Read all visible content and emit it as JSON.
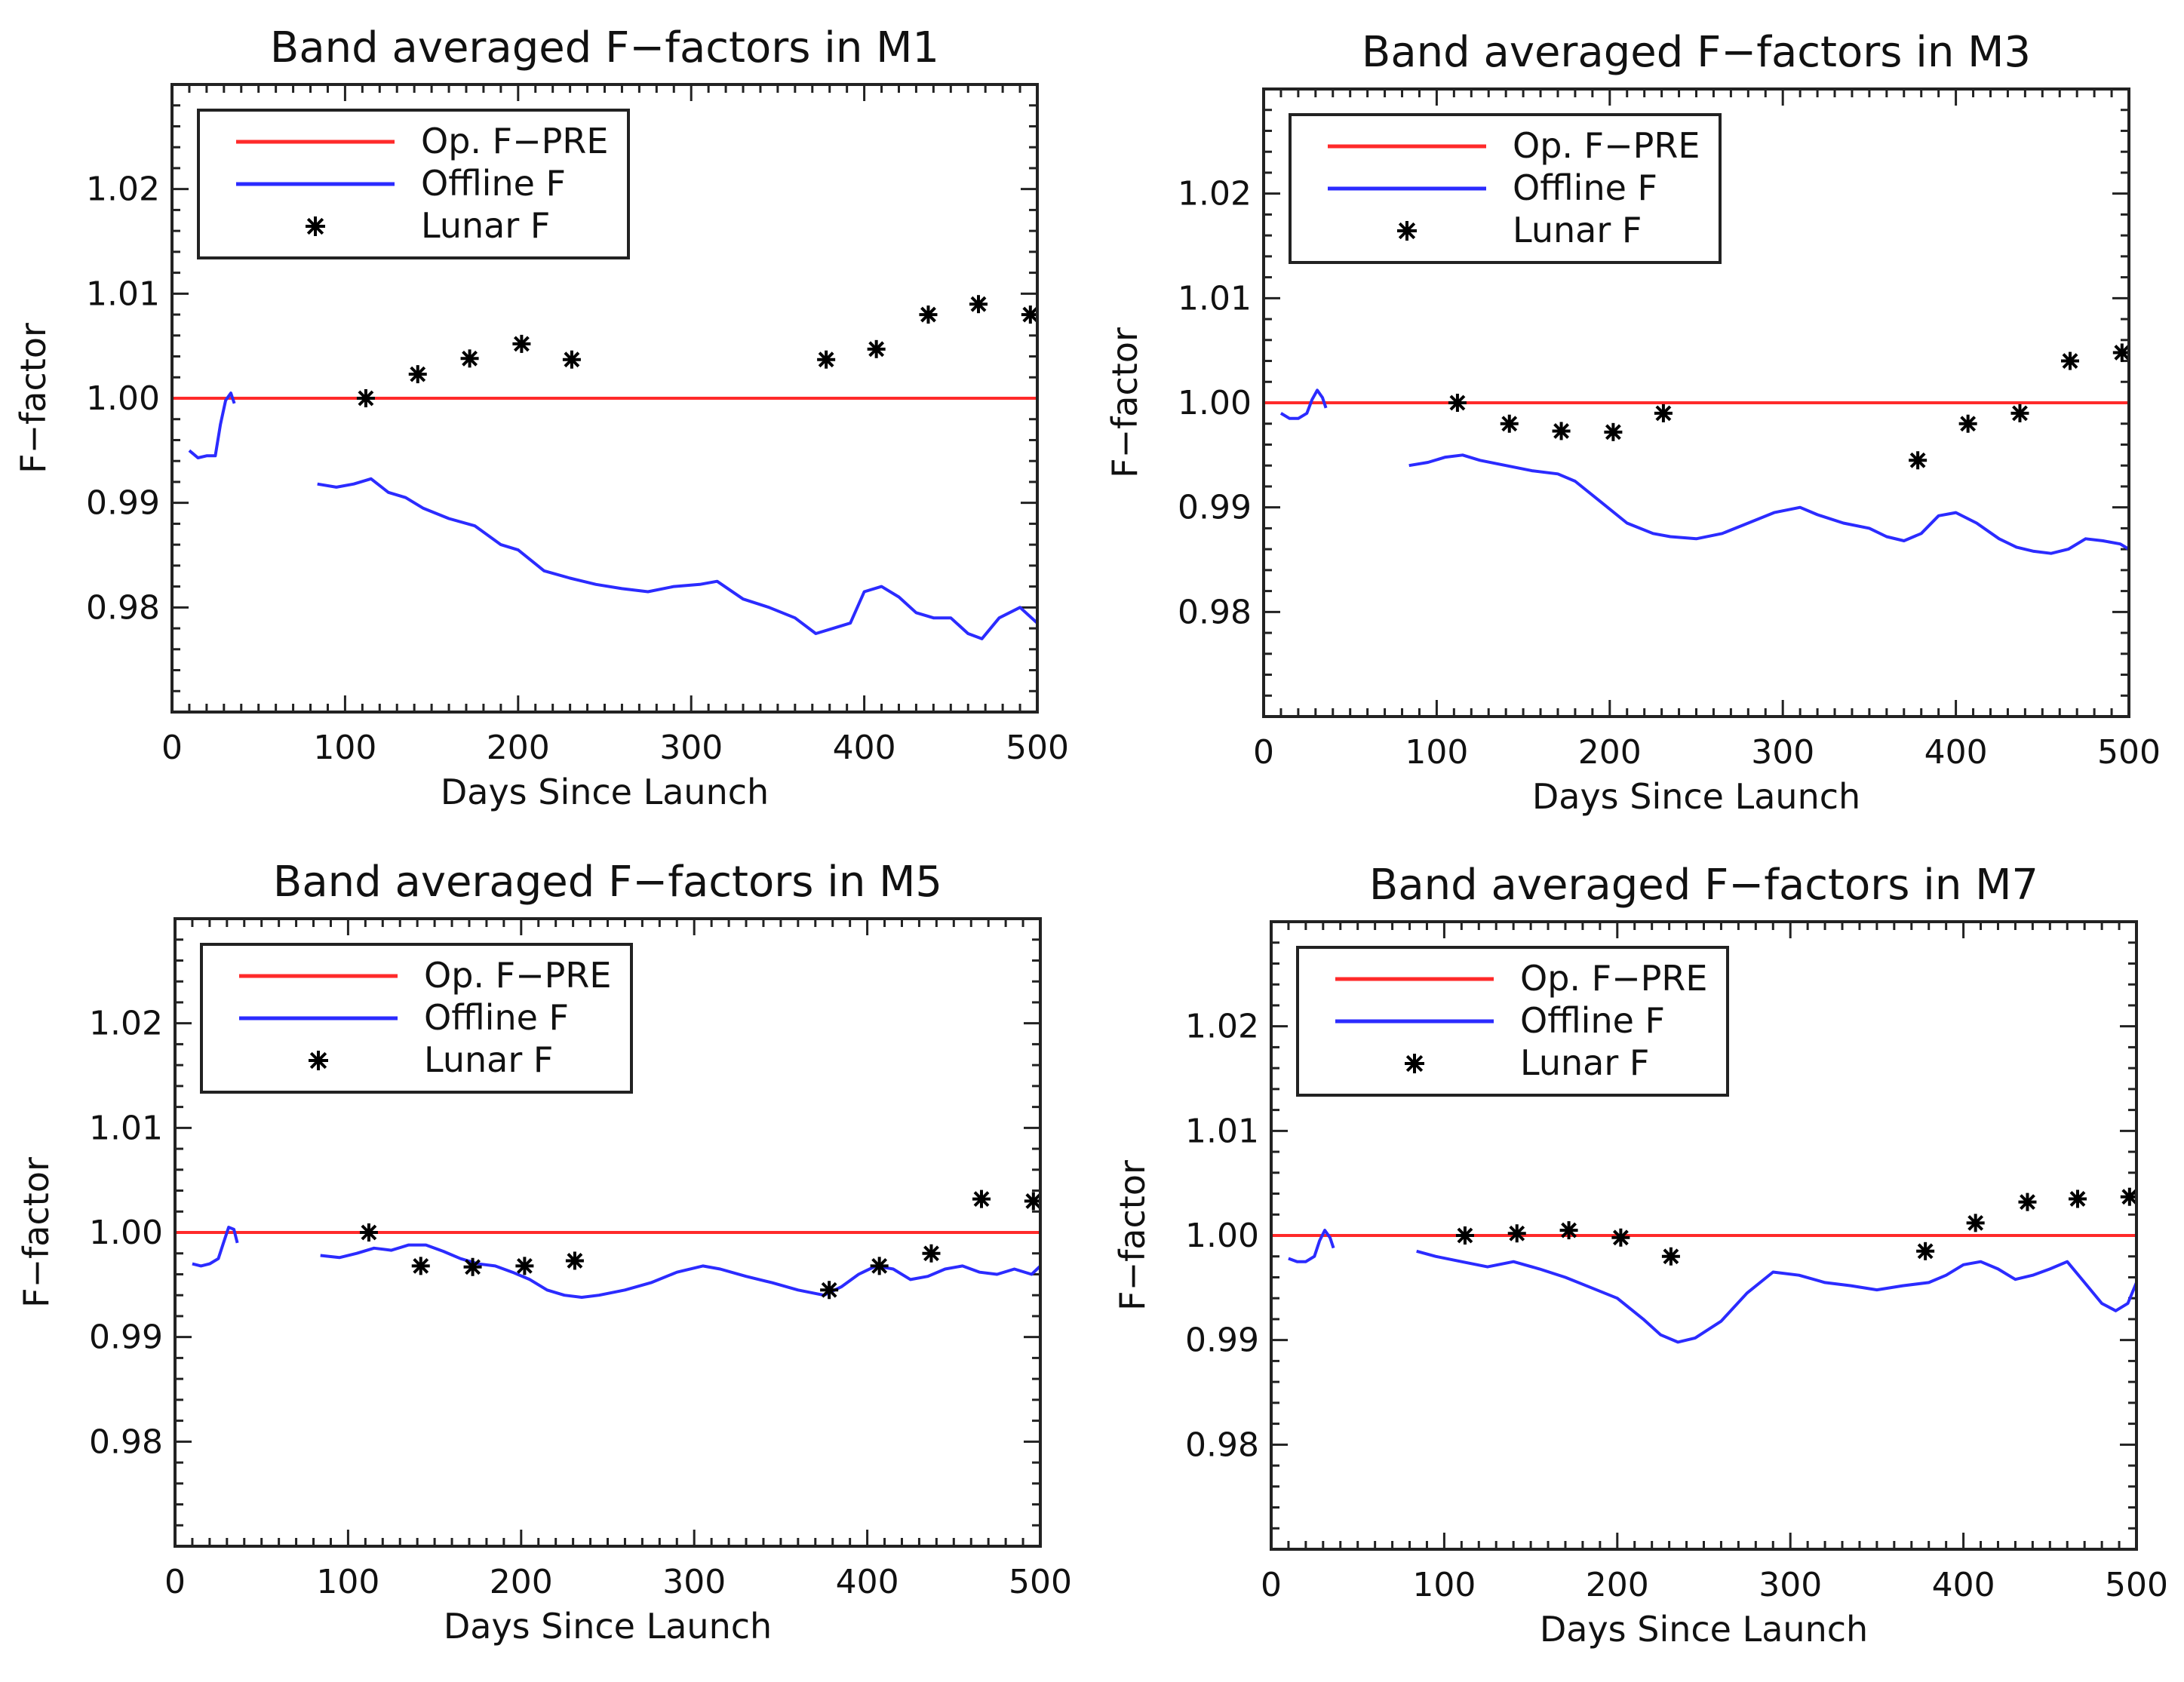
{
  "chart_data": [
    {
      "type": "line",
      "title": "Band averaged F−factors in M1",
      "xlabel": "Days Since Launch",
      "ylabel": "F−factor",
      "xlim": [
        0,
        500
      ],
      "ylim": [
        0.97,
        1.03
      ],
      "xticks": [
        "0",
        "100",
        "200",
        "300",
        "400",
        "500"
      ],
      "yticks": [
        "0.98",
        "0.99",
        "1.00",
        "1.01",
        "1.02"
      ],
      "legend": {
        "placement": "top-left",
        "entries": [
          "Op. F−PRE",
          "Offline F",
          "Lunar F"
        ]
      },
      "colors": {
        "op": "#ff2a2a",
        "offline": "#2b2bff",
        "lunar": "#000000"
      },
      "series": [
        {
          "name": "Op. F−PRE",
          "style": "line",
          "x": [
            0,
            500
          ],
          "y": [
            1.0,
            1.0
          ]
        },
        {
          "name": "Offline F",
          "style": "line",
          "segments": [
            {
              "x": [
                10,
                15,
                20,
                25,
                28,
                31,
                34,
                36
              ],
              "y": [
                0.995,
                0.9943,
                0.9945,
                0.9945,
                0.9975,
                0.9998,
                1.0005,
                0.9995
              ]
            },
            {
              "x": [
                84,
                95,
                105,
                115,
                125,
                135,
                145,
                160,
                175,
                190,
                200,
                215,
                230,
                245,
                260,
                275,
                290,
                305,
                315,
                330,
                345,
                360,
                372,
                382,
                392,
                400,
                410,
                420,
                430,
                440,
                450,
                460,
                468,
                478,
                490,
                500
              ],
              "y": [
                0.9918,
                0.9915,
                0.9918,
                0.9923,
                0.991,
                0.9905,
                0.9895,
                0.9885,
                0.9878,
                0.986,
                0.9855,
                0.9835,
                0.9828,
                0.9822,
                0.9818,
                0.9815,
                0.982,
                0.9822,
                0.9825,
                0.9808,
                0.98,
                0.979,
                0.9775,
                0.978,
                0.9785,
                0.9815,
                0.982,
                0.981,
                0.9795,
                0.979,
                0.979,
                0.9775,
                0.977,
                0.979,
                0.98,
                0.9785
              ]
            }
          ]
        },
        {
          "name": "Lunar F",
          "style": "marker",
          "x": [
            112,
            142,
            172,
            202,
            231,
            378,
            407,
            437,
            466,
            496
          ],
          "y": [
            1.0,
            1.0023,
            1.0038,
            1.0052,
            1.0037,
            1.0037,
            1.0047,
            1.008,
            1.009,
            1.008
          ]
        }
      ]
    },
    {
      "type": "line",
      "title": "Band averaged F−factors in M3",
      "xlabel": "Days Since Launch",
      "ylabel": "F−factor",
      "xlim": [
        0,
        500
      ],
      "ylim": [
        0.97,
        1.03
      ],
      "xticks": [
        "0",
        "100",
        "200",
        "300",
        "400",
        "500"
      ],
      "yticks": [
        "0.98",
        "0.99",
        "1.00",
        "1.01",
        "1.02"
      ],
      "legend": {
        "placement": "top-left",
        "entries": [
          "Op. F−PRE",
          "Offline F",
          "Lunar F"
        ]
      },
      "colors": {
        "op": "#ff2a2a",
        "offline": "#2b2bff",
        "lunar": "#000000"
      },
      "series": [
        {
          "name": "Op. F−PRE",
          "style": "line",
          "x": [
            0,
            500
          ],
          "y": [
            1.0,
            1.0
          ]
        },
        {
          "name": "Offline F",
          "style": "line",
          "segments": [
            {
              "x": [
                10,
                15,
                20,
                25,
                28,
                31,
                34,
                36
              ],
              "y": [
                0.999,
                0.9985,
                0.9985,
                0.999,
                1.0003,
                1.0012,
                1.0005,
                0.9995
              ]
            },
            {
              "x": [
                84,
                95,
                105,
                115,
                125,
                140,
                155,
                170,
                180,
                195,
                210,
                225,
                235,
                250,
                265,
                280,
                295,
                310,
                320,
                335,
                350,
                360,
                370,
                380,
                390,
                400,
                412,
                425,
                435,
                445,
                455,
                465,
                475,
                485,
                495,
                500
              ],
              "y": [
                0.994,
                0.9943,
                0.9948,
                0.995,
                0.9945,
                0.994,
                0.9935,
                0.9932,
                0.9925,
                0.9905,
                0.9885,
                0.9875,
                0.9872,
                0.987,
                0.9875,
                0.9885,
                0.9895,
                0.99,
                0.9893,
                0.9885,
                0.988,
                0.9872,
                0.9868,
                0.9875,
                0.9892,
                0.9895,
                0.9885,
                0.987,
                0.9862,
                0.9858,
                0.9856,
                0.986,
                0.987,
                0.9868,
                0.9865,
                0.986
              ]
            }
          ]
        },
        {
          "name": "Lunar F",
          "style": "marker",
          "x": [
            112,
            142,
            172,
            202,
            231,
            378,
            407,
            437,
            466,
            496
          ],
          "y": [
            1.0,
            0.998,
            0.9973,
            0.9972,
            0.999,
            0.9945,
            0.998,
            0.999,
            1.004,
            1.0048
          ]
        }
      ]
    },
    {
      "type": "line",
      "title": "Band averaged F−factors in M5",
      "xlabel": "Days Since Launch",
      "ylabel": "F−factor",
      "xlim": [
        0,
        500
      ],
      "ylim": [
        0.97,
        1.03
      ],
      "xticks": [
        "0",
        "100",
        "200",
        "300",
        "400",
        "500"
      ],
      "yticks": [
        "0.98",
        "0.99",
        "1.00",
        "1.01",
        "1.02"
      ],
      "legend": {
        "placement": "top-left",
        "entries": [
          "Op. F−PRE",
          "Offline F",
          "Lunar F"
        ]
      },
      "colors": {
        "op": "#ff2a2a",
        "offline": "#2b2bff",
        "lunar": "#000000"
      },
      "series": [
        {
          "name": "Op. F−PRE",
          "style": "line",
          "x": [
            0,
            500
          ],
          "y": [
            1.0,
            1.0
          ]
        },
        {
          "name": "Offline F",
          "style": "line",
          "segments": [
            {
              "x": [
                10,
                15,
                20,
                25,
                28,
                31,
                34,
                36
              ],
              "y": [
                0.997,
                0.9968,
                0.997,
                0.9975,
                0.999,
                1.0005,
                1.0003,
                0.999
              ]
            },
            {
              "x": [
                84,
                95,
                105,
                115,
                125,
                135,
                145,
                155,
                165,
                175,
                185,
                195,
                205,
                215,
                225,
                235,
                245,
                260,
                275,
                290,
                305,
                315,
                330,
                345,
                360,
                375,
                385,
                395,
                405,
                415,
                425,
                435,
                445,
                455,
                465,
                475,
                485,
                495,
                500
              ],
              "y": [
                0.9978,
                0.9976,
                0.998,
                0.9985,
                0.9983,
                0.9988,
                0.9988,
                0.9982,
                0.9975,
                0.997,
                0.9968,
                0.9962,
                0.9955,
                0.9945,
                0.994,
                0.9938,
                0.994,
                0.9945,
                0.9952,
                0.9962,
                0.9968,
                0.9965,
                0.9958,
                0.9952,
                0.9945,
                0.994,
                0.9948,
                0.996,
                0.9968,
                0.9965,
                0.9955,
                0.9958,
                0.9965,
                0.9968,
                0.9962,
                0.996,
                0.9965,
                0.996,
                0.9968
              ]
            }
          ]
        },
        {
          "name": "Lunar F",
          "style": "marker",
          "x": [
            112,
            142,
            172,
            202,
            231,
            378,
            407,
            437,
            466,
            496
          ],
          "y": [
            1.0,
            0.9968,
            0.9967,
            0.9968,
            0.9973,
            0.9945,
            0.9968,
            0.998,
            1.0032,
            1.003
          ]
        }
      ]
    },
    {
      "type": "line",
      "title": "Band averaged F−factors in M7",
      "xlabel": "Days Since Launch",
      "ylabel": "F−factor",
      "xlim": [
        0,
        500
      ],
      "ylim": [
        0.97,
        1.03
      ],
      "xticks": [
        "0",
        "100",
        "200",
        "300",
        "400",
        "500"
      ],
      "yticks": [
        "0.98",
        "0.99",
        "1.00",
        "1.01",
        "1.02"
      ],
      "legend": {
        "placement": "top-left",
        "entries": [
          "Op. F−PRE",
          "Offline F",
          "Lunar F"
        ]
      },
      "colors": {
        "op": "#ff2a2a",
        "offline": "#2b2bff",
        "lunar": "#000000"
      },
      "series": [
        {
          "name": "Op. F−PRE",
          "style": "line",
          "x": [
            0,
            500
          ],
          "y": [
            1.0,
            1.0
          ]
        },
        {
          "name": "Offline F",
          "style": "line",
          "segments": [
            {
              "x": [
                10,
                15,
                20,
                25,
                28,
                31,
                34,
                36
              ],
              "y": [
                0.9978,
                0.9975,
                0.9975,
                0.998,
                0.9995,
                1.0005,
                0.9998,
                0.9988
              ]
            },
            {
              "x": [
                84,
                95,
                110,
                125,
                140,
                155,
                170,
                185,
                200,
                215,
                225,
                235,
                245,
                260,
                275,
                290,
                305,
                320,
                335,
                350,
                365,
                380,
                390,
                400,
                410,
                420,
                430,
                440,
                450,
                460,
                470,
                480,
                488,
                495,
                500
              ],
              "y": [
                0.9985,
                0.998,
                0.9975,
                0.997,
                0.9975,
                0.9968,
                0.996,
                0.995,
                0.994,
                0.992,
                0.9905,
                0.9898,
                0.9902,
                0.9918,
                0.9945,
                0.9965,
                0.9962,
                0.9955,
                0.9952,
                0.9948,
                0.9952,
                0.9955,
                0.9962,
                0.9972,
                0.9975,
                0.9968,
                0.9958,
                0.9962,
                0.9968,
                0.9975,
                0.9955,
                0.9935,
                0.9928,
                0.9935,
                0.9955
              ]
            }
          ]
        },
        {
          "name": "Lunar F",
          "style": "marker",
          "x": [
            112,
            142,
            172,
            202,
            231,
            378,
            407,
            437,
            466,
            496
          ],
          "y": [
            1.0,
            1.0002,
            1.0005,
            0.9998,
            0.998,
            0.9985,
            1.0012,
            1.0032,
            1.0035,
            1.0037
          ]
        }
      ]
    }
  ]
}
